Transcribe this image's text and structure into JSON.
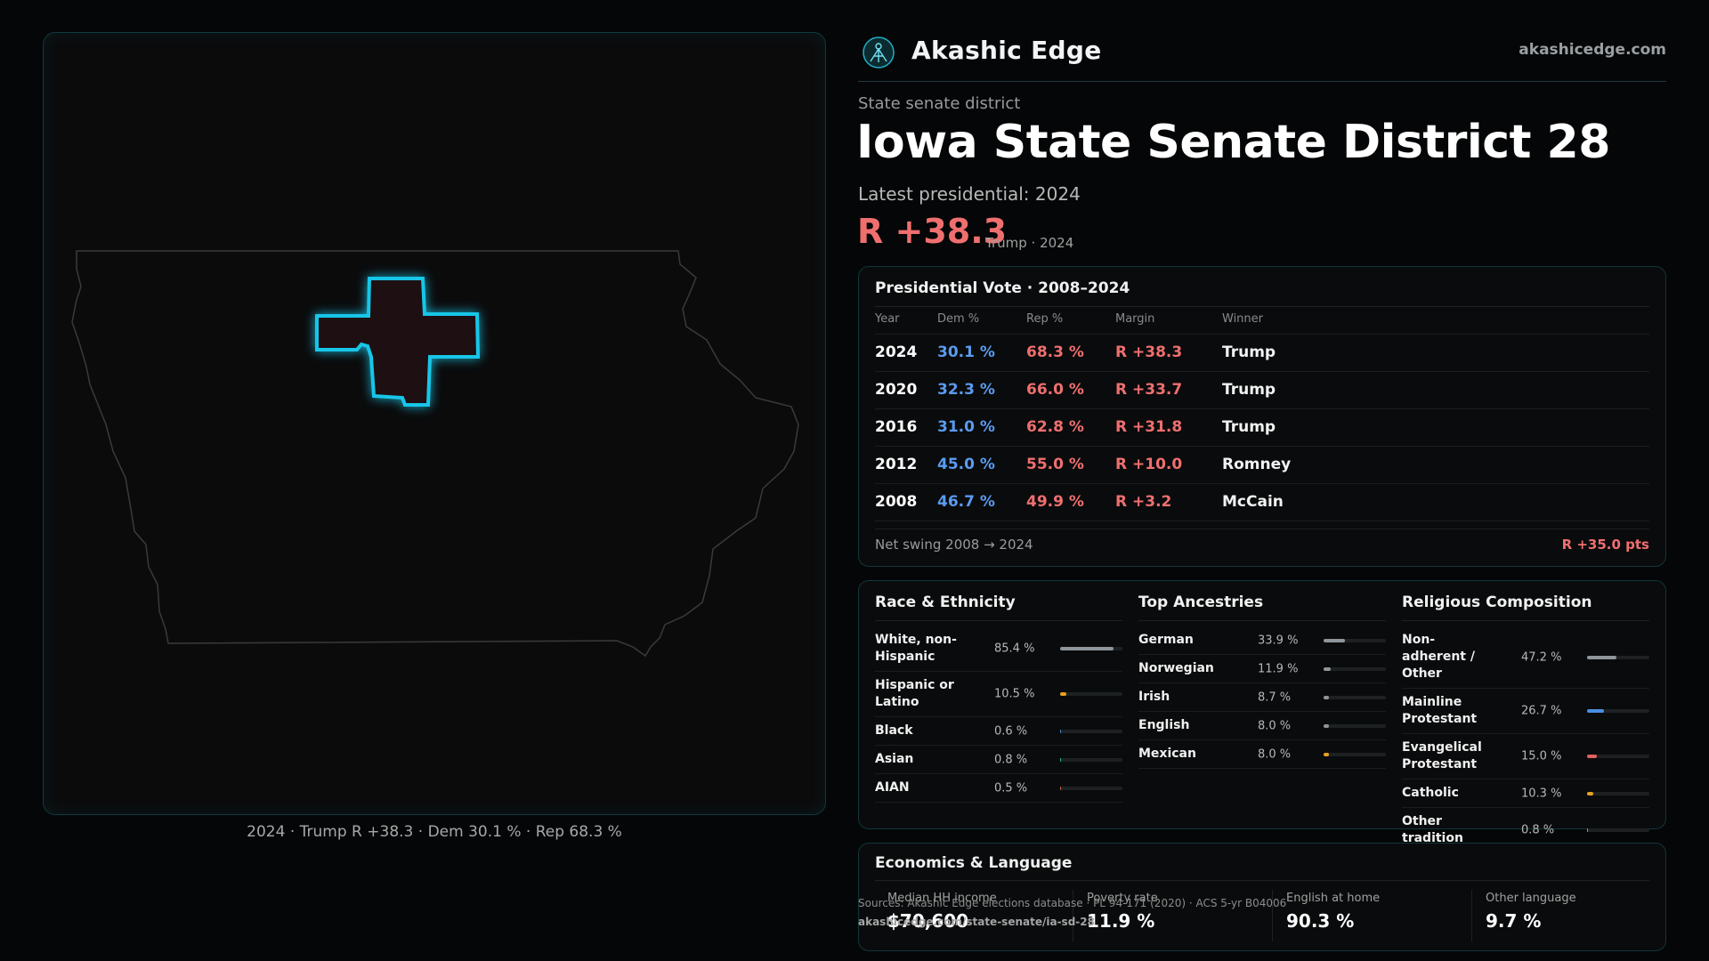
{
  "brand": {
    "name": "Akashic Edge",
    "url": "akashicedge.com",
    "logo": "akashic-edge-logo"
  },
  "header": {
    "kicker": "State senate district",
    "title": "Iowa State Senate District 28",
    "latest": "Latest presidential: 2024",
    "margin": "R +38.3",
    "margin_sub": "Trump · 2024"
  },
  "map": {
    "caption": "2024 · Trump R +38.3 · Dem 30.1 % · Rep 68.3 %",
    "state_outline_color": "#3a3a3a",
    "district_color": "#17c6e8"
  },
  "presidential": {
    "title": "Presidential Vote · 2008–2024",
    "headers": {
      "year": "Year",
      "dem": "Dem %",
      "rep": "Rep %",
      "margin": "Margin",
      "winner": "Winner"
    },
    "rows": [
      {
        "year": "2024",
        "dem": "30.1 %",
        "rep": "68.3 %",
        "margin": "R +38.3",
        "winner": "Trump"
      },
      {
        "year": "2020",
        "dem": "32.3 %",
        "rep": "66.0 %",
        "margin": "R +33.7",
        "winner": "Trump"
      },
      {
        "year": "2016",
        "dem": "31.0 %",
        "rep": "62.8 %",
        "margin": "R +31.8",
        "winner": "Trump"
      },
      {
        "year": "2012",
        "dem": "45.0 %",
        "rep": "55.0 %",
        "margin": "R +10.0",
        "winner": "Romney"
      },
      {
        "year": "2008",
        "dem": "46.7 %",
        "rep": "49.9 %",
        "margin": "R +3.2",
        "winner": "McCain"
      }
    ],
    "swing_label": "Net swing 2008 → 2024",
    "swing_value": "R +35.0 pts"
  },
  "race": {
    "title": "Race & Ethnicity",
    "rows": [
      {
        "label": "White, non-Hispanic",
        "value": "85.4 %",
        "pct": 85.4,
        "color": "#8e969c"
      },
      {
        "label": "Hispanic or Latino",
        "value": "10.5 %",
        "pct": 10.5,
        "color": "#e8a020"
      },
      {
        "label": "Black",
        "value": "0.6 %",
        "pct": 0.6,
        "color": "#4a7fd0"
      },
      {
        "label": "Asian",
        "value": "0.8 %",
        "pct": 0.8,
        "color": "#2fb39a"
      },
      {
        "label": "AIAN",
        "value": "0.5 %",
        "pct": 0.5,
        "color": "#c0603a"
      }
    ]
  },
  "ancestries": {
    "title": "Top Ancestries",
    "rows": [
      {
        "label": "German",
        "value": "33.9 %",
        "pct": 33.9,
        "color": "#8e969c"
      },
      {
        "label": "Norwegian",
        "value": "11.9 %",
        "pct": 11.9,
        "color": "#8e969c"
      },
      {
        "label": "Irish",
        "value": "8.7 %",
        "pct": 8.7,
        "color": "#8e969c"
      },
      {
        "label": "English",
        "value": "8.0 %",
        "pct": 8.0,
        "color": "#8e969c"
      },
      {
        "label": "Mexican",
        "value": "8.0 %",
        "pct": 8.0,
        "color": "#e8a020"
      }
    ]
  },
  "religion": {
    "title": "Religious Composition",
    "rows": [
      {
        "label": "Non-adherent / Other",
        "value": "47.2 %",
        "pct": 47.2,
        "color": "#8e969c"
      },
      {
        "label": "Mainline Protestant",
        "value": "26.7 %",
        "pct": 26.7,
        "color": "#4a90e2"
      },
      {
        "label": "Evangelical Protestant",
        "value": "15.0 %",
        "pct": 15.0,
        "color": "#e06060"
      },
      {
        "label": "Catholic",
        "value": "10.3 %",
        "pct": 10.3,
        "color": "#e8a020"
      },
      {
        "label": "Other tradition",
        "value": "0.8 %",
        "pct": 0.8,
        "color": "#8e969c"
      }
    ]
  },
  "economics": {
    "title": "Economics & Language",
    "items": [
      {
        "label": "Median HH income",
        "value": "$70,600"
      },
      {
        "label": "Poverty rate",
        "value": "11.9 %"
      },
      {
        "label": "English at home",
        "value": "90.3 %"
      },
      {
        "label": "Other language",
        "value": "9.7 %"
      }
    ]
  },
  "footer": {
    "source": "Sources: Akashic Edge elections database · PL 94-171 (2020) · ACS 5-yr B04006",
    "url": "akashicedge.com/state-senate/ia-sd-28"
  }
}
